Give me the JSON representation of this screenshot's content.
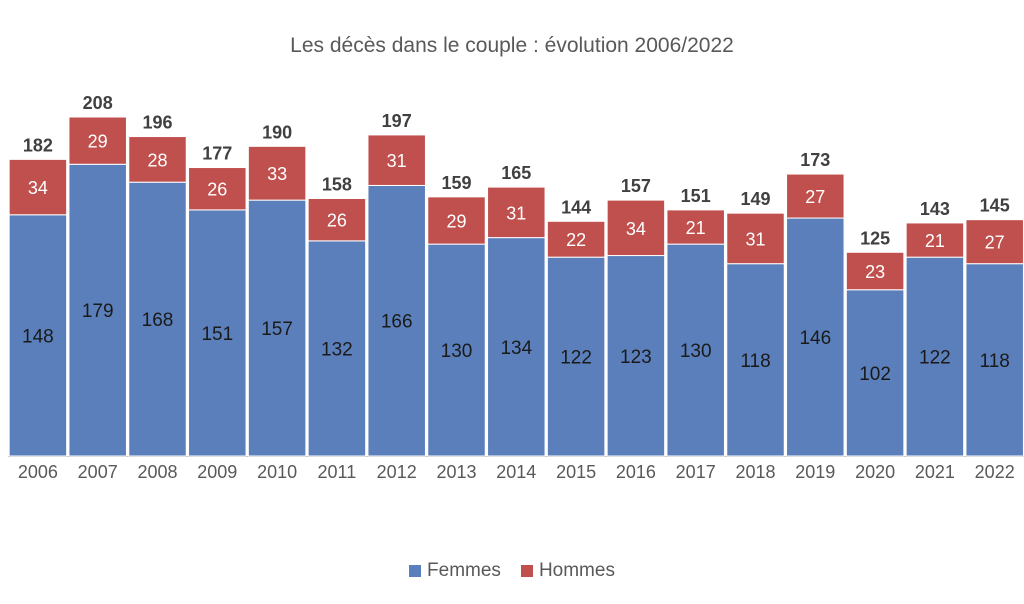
{
  "chart_data": {
    "type": "bar",
    "stacked": true,
    "title": "Les décès dans le couple : évolution 2006/2022",
    "xlabel": "",
    "ylabel": "",
    "grid": false,
    "legend": "bottom",
    "categories": [
      "2006",
      "2007",
      "2008",
      "2009",
      "2010",
      "2011",
      "2012",
      "2013",
      "2014",
      "2015",
      "2016",
      "2017",
      "2018",
      "2019",
      "2020",
      "2021",
      "2022"
    ],
    "series": [
      {
        "name": "Femmes",
        "color": "#5b7fba",
        "values": [
          148,
          179,
          168,
          151,
          157,
          132,
          166,
          130,
          134,
          122,
          123,
          130,
          118,
          146,
          102,
          122,
          118
        ]
      },
      {
        "name": "Hommes",
        "color": "#c0504d",
        "values": [
          34,
          29,
          28,
          26,
          33,
          26,
          31,
          29,
          31,
          22,
          34,
          21,
          31,
          27,
          23,
          21,
          27
        ]
      }
    ],
    "totals": [
      182,
      208,
      196,
      177,
      190,
      158,
      197,
      159,
      165,
      144,
      157,
      151,
      149,
      173,
      125,
      143,
      145
    ]
  }
}
